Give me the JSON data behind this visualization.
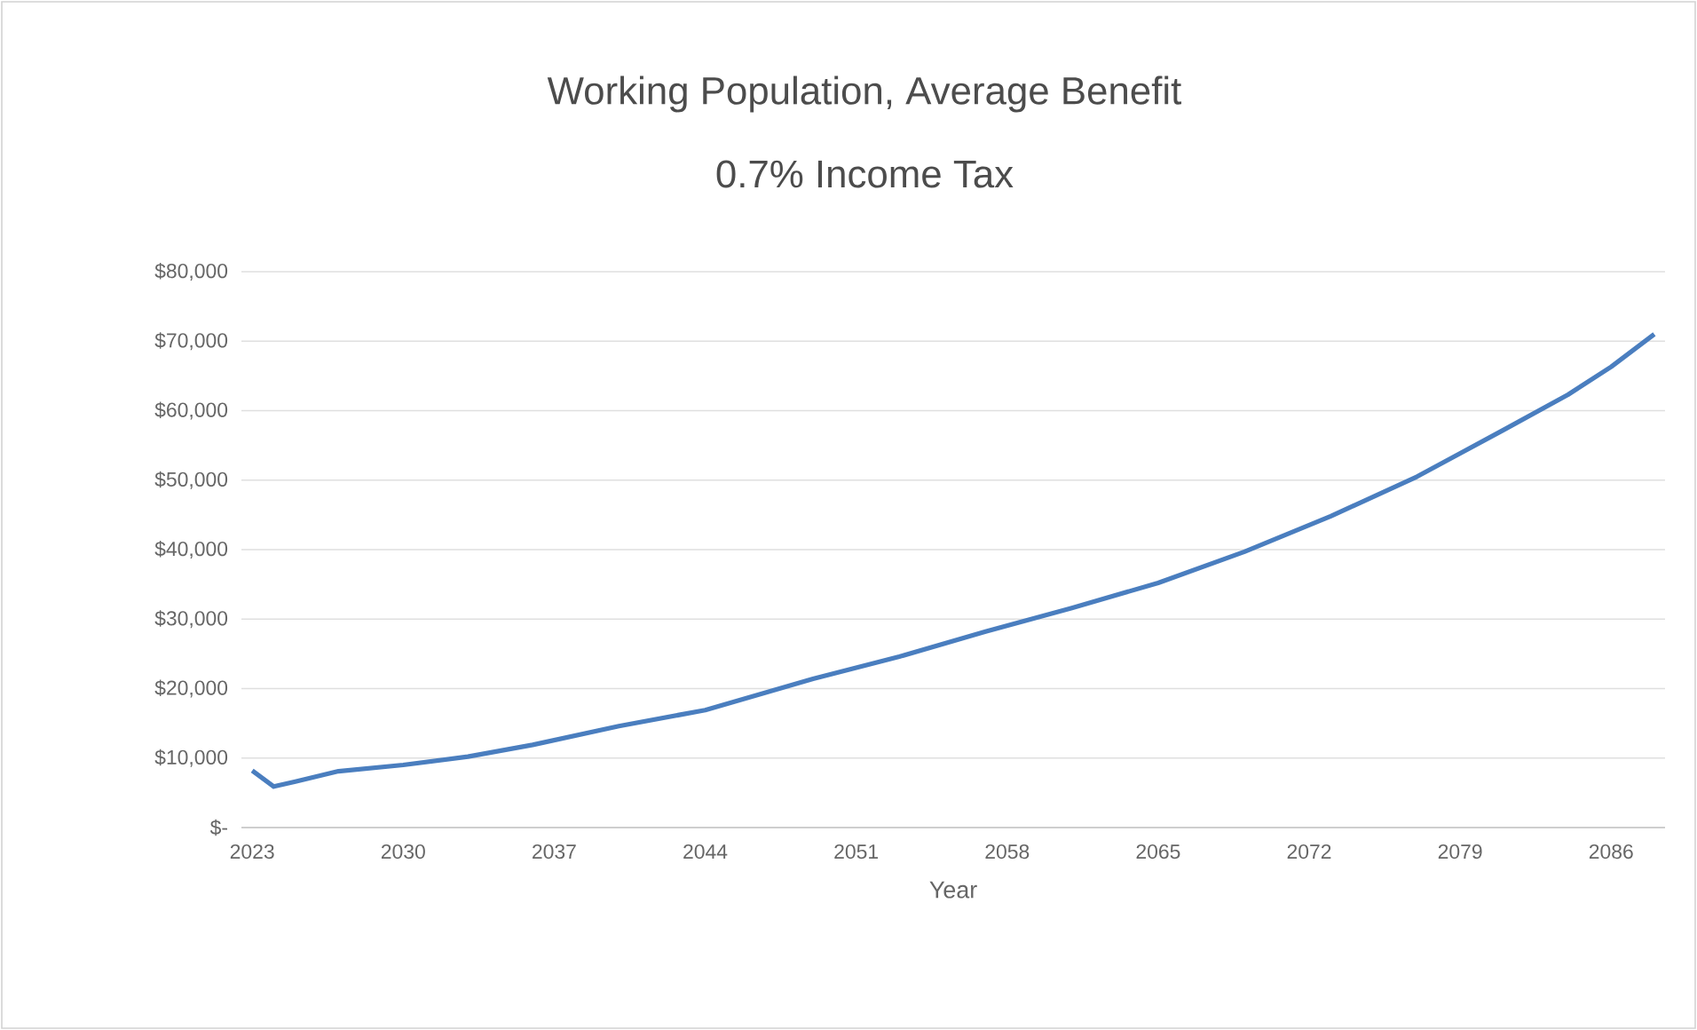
{
  "chart_data": {
    "type": "line",
    "title": "Working Population, Average Benefit",
    "subtitle": "0.7% Income Tax",
    "xlabel": "Year",
    "x": [
      2023,
      2024,
      2025,
      2027,
      2030,
      2033,
      2036,
      2040,
      2044,
      2049,
      2053,
      2057,
      2061,
      2065,
      2069,
      2073,
      2077,
      2081,
      2084,
      2086,
      2088
    ],
    "series": [
      {
        "color": "#4a7ebf",
        "values": [
          8200,
          5900,
          6600,
          8100,
          9000,
          10200,
          11900,
          14600,
          16900,
          21400,
          24600,
          28200,
          31600,
          35200,
          39700,
          44800,
          50500,
          57200,
          62300,
          66300,
          71000
        ]
      }
    ],
    "xlim": [
      2022.5,
      2088.5
    ],
    "xticks": [
      2023,
      2030,
      2037,
      2044,
      2051,
      2058,
      2065,
      2072,
      2079,
      2086
    ],
    "ylim": [
      0,
      80000
    ],
    "yticks": [
      {
        "value": 0,
        "label": "$-"
      },
      {
        "value": 10000,
        "label": "$10,000"
      },
      {
        "value": 20000,
        "label": "$20,000"
      },
      {
        "value": 30000,
        "label": "$30,000"
      },
      {
        "value": 40000,
        "label": "$40,000"
      },
      {
        "value": 50000,
        "label": "$50,000"
      },
      {
        "value": 60000,
        "label": "$60,000"
      },
      {
        "value": 70000,
        "label": "$70,000"
      },
      {
        "value": 80000,
        "label": "$80,000"
      }
    ],
    "grid": "y",
    "marker": "none",
    "line_style": "solid"
  }
}
